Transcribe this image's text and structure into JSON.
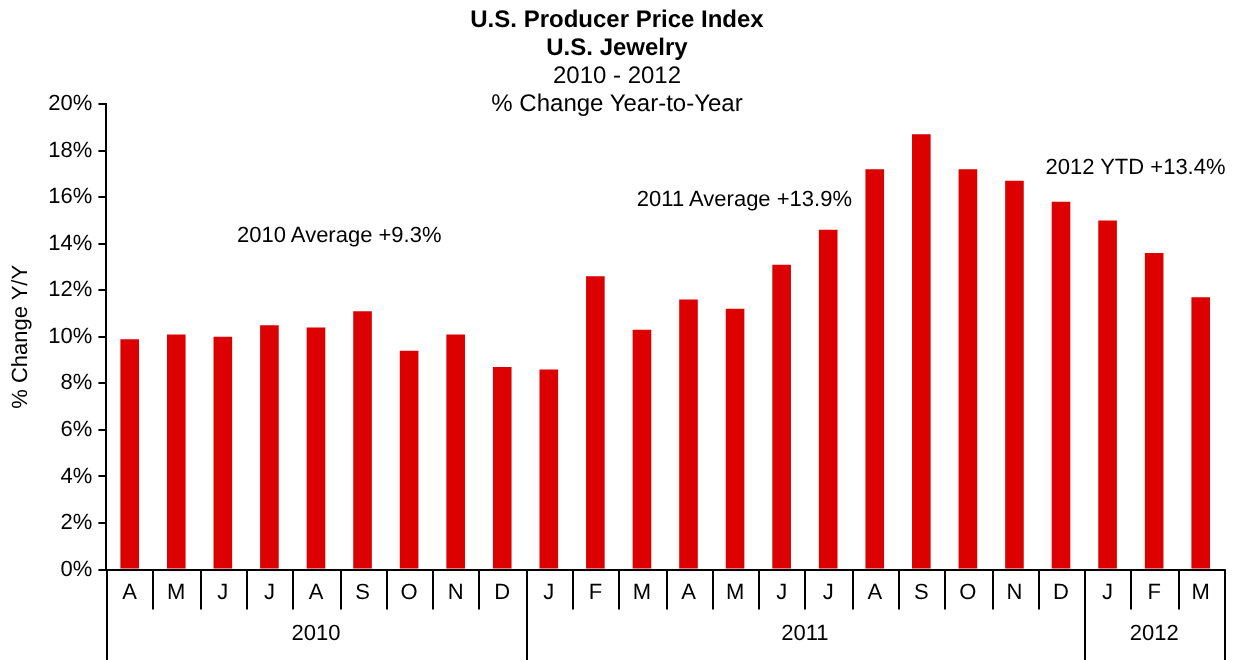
{
  "chart_data": {
    "type": "bar",
    "title": "U.S. Producer Price Index\nU.S. Jewelry",
    "subtitle": "2010 - 2012\n% Change Year-to-Year",
    "ylabel": "% Change Y/Y",
    "categories": [
      "A",
      "M",
      "J",
      "J",
      "A",
      "S",
      "O",
      "N",
      "D",
      "J",
      "F",
      "M",
      "A",
      "M",
      "J",
      "J",
      "A",
      "S",
      "O",
      "N",
      "D",
      "J",
      "F",
      "M"
    ],
    "values": [
      9.9,
      10.1,
      10.0,
      10.5,
      10.4,
      11.1,
      9.4,
      10.1,
      8.7,
      8.6,
      12.6,
      10.3,
      11.6,
      11.2,
      13.1,
      14.6,
      17.2,
      18.7,
      17.2,
      16.7,
      15.8,
      15.0,
      13.6,
      11.7
    ],
    "color": "#dd0000",
    "ylim": [
      0,
      20
    ],
    "yticks": [
      {
        "value": 0,
        "label": "0%"
      },
      {
        "value": 2,
        "label": "2%"
      },
      {
        "value": 4,
        "label": "4%"
      },
      {
        "value": 6,
        "label": "6%"
      },
      {
        "value": 8,
        "label": "8%"
      },
      {
        "value": 10,
        "label": "10%"
      },
      {
        "value": 12,
        "label": "12%"
      },
      {
        "value": 14,
        "label": "14%"
      },
      {
        "value": 16,
        "label": "16%"
      },
      {
        "value": 18,
        "label": "18%"
      },
      {
        "value": 20,
        "label": "20%"
      }
    ],
    "annotations": [
      "2010 Average +9.3%",
      "2011 Average +13.9%",
      "2012 YTD +13.4%",
      "2010",
      "2011",
      "2012"
    ],
    "grid": false,
    "legend": false
  }
}
